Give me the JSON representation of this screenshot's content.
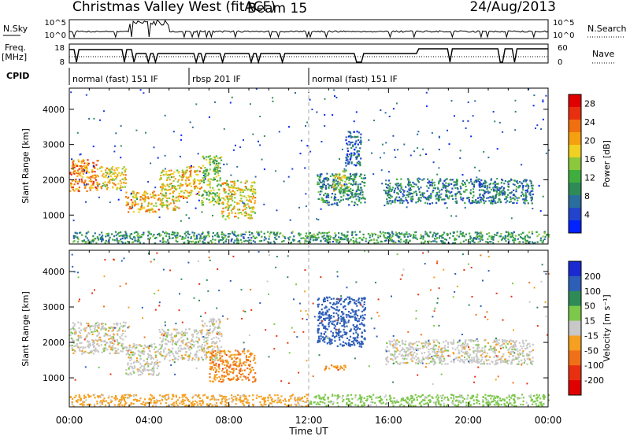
{
  "header": {
    "station": "Christmas Valley West (fitACF)",
    "beam": "Beam 15",
    "date": "24/Aug/2013"
  },
  "panels": {
    "nsky_label": "N.Sky",
    "nsky_ticks": [
      "10^5",
      "10^0"
    ],
    "nsearch_label": "N.Search",
    "nsearch_ticks": [
      "10^5",
      "10^0"
    ],
    "freq_label": "Freq.",
    "freq_unit": "[MHz]",
    "freq_ticks": [
      "18",
      "8"
    ],
    "nave_label": "Nave",
    "nave_ticks": [
      "60",
      "0"
    ],
    "cpid_label": "CPID",
    "cpid_segments": [
      {
        "label": "normal (fast) 151 IF",
        "start_h": 0.0,
        "end_h": 6.0
      },
      {
        "label": "rbsp 201 IF",
        "start_h": 6.0,
        "end_h": 12.0
      },
      {
        "label": "normal (fast) 151 IF",
        "start_h": 12.0,
        "end_h": 24.0
      }
    ]
  },
  "chart_data": [
    {
      "type": "heatmap",
      "name": "power",
      "xlabel": "Time UT",
      "ylabel": "Slant Range [km]",
      "x_ticks": [
        "00:00",
        "04:00",
        "08:00",
        "12:00",
        "16:00",
        "20:00",
        "00:00"
      ],
      "xlim": [
        0,
        24
      ],
      "ylim": [
        180,
        4600
      ],
      "y_ticks": [
        1000,
        2000,
        3000,
        4000
      ],
      "colorbar": {
        "label": "Power [dB]",
        "ticks": [
          4,
          8,
          12,
          16,
          20,
          24,
          28
        ],
        "range": [
          0,
          30
        ],
        "colors": [
          "#0022ff",
          "#2244cc",
          "#2a6e9e",
          "#2e8b57",
          "#3fae3f",
          "#8cc83c",
          "#f0d020",
          "#f5a010",
          "#f07010",
          "#e83010",
          "#e00000"
        ]
      },
      "regions": [
        {
          "t0": 0.0,
          "t1": 1.5,
          "r0": 1700,
          "r1": 2600,
          "level": 22
        },
        {
          "t0": 1.5,
          "t1": 2.8,
          "r0": 1750,
          "r1": 2400,
          "level": 18
        },
        {
          "t0": 2.8,
          "t1": 4.5,
          "r0": 1100,
          "r1": 1700,
          "level": 20
        },
        {
          "t0": 4.5,
          "t1": 5.5,
          "r0": 1150,
          "r1": 2300,
          "level": 18
        },
        {
          "t0": 5.5,
          "t1": 6.6,
          "r0": 1500,
          "r1": 2400,
          "level": 20
        },
        {
          "t0": 6.6,
          "t1": 7.6,
          "r0": 1300,
          "r1": 2700,
          "level": 14
        },
        {
          "t0": 7.6,
          "t1": 9.3,
          "r0": 900,
          "r1": 2000,
          "level": 18
        },
        {
          "t0": 0.0,
          "t1": 24.0,
          "r0": 220,
          "r1": 550,
          "level": 10
        },
        {
          "t0": 12.4,
          "t1": 14.8,
          "r0": 1300,
          "r1": 2200,
          "level": 9
        },
        {
          "t0": 13.2,
          "t1": 14.0,
          "r0": 1700,
          "r1": 2300,
          "level": 15
        },
        {
          "t0": 15.8,
          "t1": 23.2,
          "r0": 1350,
          "r1": 2050,
          "level": 8
        },
        {
          "t0": 13.8,
          "t1": 14.6,
          "r0": 2400,
          "r1": 3400,
          "level": 6
        }
      ]
    },
    {
      "type": "heatmap",
      "name": "velocity",
      "xlabel": "Time UT",
      "ylabel": "Slant Range [km]",
      "x_ticks": [
        "00:00",
        "04:00",
        "08:00",
        "12:00",
        "16:00",
        "20:00",
        "00:00"
      ],
      "xlim": [
        0,
        24
      ],
      "ylim": [
        180,
        4600
      ],
      "y_ticks": [
        1000,
        2000,
        3000,
        4000
      ],
      "colorbar": {
        "label": "Velocity [m s⁻¹]",
        "ticks": [
          200,
          100,
          50,
          15,
          -15,
          -50,
          -100,
          -200
        ],
        "colors": [
          "#1a2ad0",
          "#2e5fb8",
          "#2e8b57",
          "#7cc84a",
          "#c8c8c8",
          "#f5a020",
          "#f07018",
          "#e83010",
          "#e00000"
        ]
      },
      "regions": [
        {
          "t0": 0.0,
          "t1": 2.8,
          "r0": 1700,
          "r1": 2600,
          "level": 0
        },
        {
          "t0": 2.8,
          "t1": 4.5,
          "r0": 1100,
          "r1": 2000,
          "level": 0
        },
        {
          "t0": 4.5,
          "t1": 6.6,
          "r0": 1500,
          "r1": 2400,
          "level": 0
        },
        {
          "t0": 6.6,
          "t1": 7.6,
          "r0": 1500,
          "r1": 2700,
          "level": 0
        },
        {
          "t0": 7.0,
          "t1": 9.3,
          "r0": 900,
          "r1": 1800,
          "level": -50
        },
        {
          "t0": 0.0,
          "t1": 12.0,
          "r0": 220,
          "r1": 550,
          "level": -30
        },
        {
          "t0": 12.0,
          "t1": 24.0,
          "r0": 220,
          "r1": 550,
          "level": 30
        },
        {
          "t0": 12.4,
          "t1": 14.8,
          "r0": 1900,
          "r1": 3300,
          "level": 180
        },
        {
          "t0": 12.6,
          "t1": 13.8,
          "r0": 1250,
          "r1": 1400,
          "level": -50
        },
        {
          "t0": 15.8,
          "t1": 23.2,
          "r0": 1400,
          "r1": 2100,
          "level": 0
        }
      ]
    }
  ]
}
